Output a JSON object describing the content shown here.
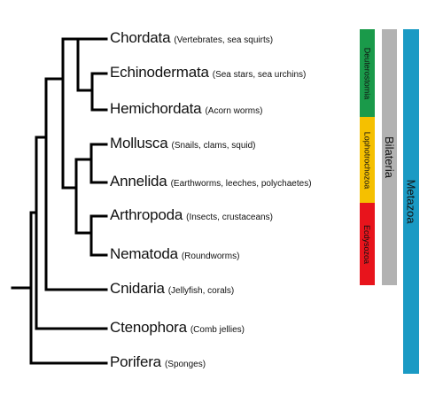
{
  "taxa": [
    {
      "name": "Chordata",
      "note": "(Vertebrates, sea squirts)"
    },
    {
      "name": "Echinodermata",
      "note": "(Sea stars, sea urchins)"
    },
    {
      "name": "Hemichordata",
      "note": "(Acorn worms)"
    },
    {
      "name": "Mollusca",
      "note": "(Snails, clams, squid)"
    },
    {
      "name": "Annelida",
      "note": "(Earthworms, leeches, polychaetes)"
    },
    {
      "name": "Arthropoda",
      "note": "(Insects, crustaceans)"
    },
    {
      "name": "Nematoda",
      "note": "(Roundworms)"
    },
    {
      "name": "Cnidaria",
      "note": "(Jellyfish, corals)"
    },
    {
      "name": "Ctenophora",
      "note": "(Comb jellies)"
    },
    {
      "name": "Porifera",
      "note": "(Sponges)"
    }
  ],
  "groups": {
    "deuterostomia": {
      "label": "Deuterostomia",
      "color": "#1a9a4a"
    },
    "lophotrochozoa": {
      "label": "Lophotrochozoa",
      "color": "#f5c000"
    },
    "ecdysozoa": {
      "label": "Ecdysozoa",
      "color": "#e8141c"
    },
    "bilateria": {
      "label": "Bilateria",
      "color": "#b2b2b2"
    },
    "metazoa": {
      "label": "Metazoa",
      "color": "#1a9ac4"
    }
  }
}
